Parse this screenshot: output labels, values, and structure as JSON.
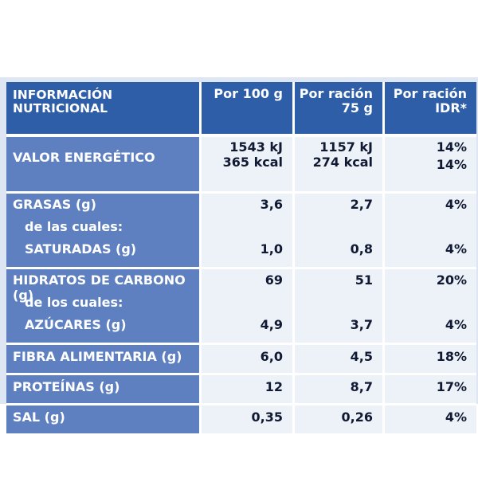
{
  "header": {
    "title_line1": "INFORMACIÓN",
    "title_line2": "NUTRICIONAL",
    "col_100g": "Por 100 g",
    "col_portion_line1": "Por ración",
    "col_portion_line2": "75 g",
    "col_idr_line1": "Por ración",
    "col_idr_line2": "IDR*"
  },
  "rows": {
    "energy": {
      "label": "VALOR ENERGÉTICO",
      "per100_kj": "1543 kJ",
      "per100_kcal": "365 kcal",
      "portion_kj": "1157 kJ",
      "portion_kcal": "274 kcal",
      "idr_kj": "14%",
      "idr_kcal": "14%"
    },
    "fat": {
      "label": "GRASAS (g)",
      "sub_label": "de las cuales:",
      "sat_label": "SATURADAS (g)",
      "per100": "3,6",
      "portion": "2,7",
      "idr": "4%",
      "sat_per100": "1,0",
      "sat_portion": "0,8",
      "sat_idr": "4%"
    },
    "carbs": {
      "label": "HIDRATOS DE CARBONO (g)",
      "sub_label": "de los cuales:",
      "sugar_label": "AZÚCARES (g)",
      "per100": "69",
      "portion": "51",
      "idr": "20%",
      "sugar_per100": "4,9",
      "sugar_portion": "3,7",
      "sugar_idr": "4%"
    },
    "fiber": {
      "label": "FIBRA ALIMENTARIA (g)",
      "per100": "6,0",
      "portion": "4,5",
      "idr": "18%"
    },
    "protein": {
      "label": "PROTEÍNAS (g)",
      "per100": "12",
      "portion": "8,7",
      "idr": "17%"
    },
    "salt": {
      "label": "SAL (g)",
      "per100": "0,35",
      "portion": "0,26",
      "idr": "4%"
    }
  },
  "colors": {
    "header_bg": "#2e5ea8",
    "label_bg": "#5f80c0",
    "value_bg": "#edf1f8",
    "panel_bg": "#dfe6f3"
  }
}
